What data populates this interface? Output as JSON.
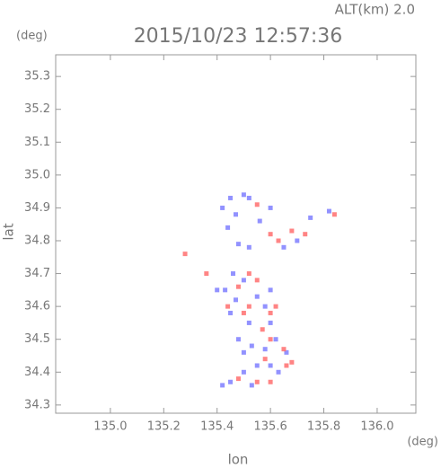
{
  "chart_data": {
    "type": "scatter",
    "title": "2015/10/23 12:57:36",
    "altitude_label": "ALT(km) 2.0",
    "y_unit": "(deg)",
    "x_unit": "(deg)",
    "xlabel": "lon",
    "ylabel": "lat",
    "xlim": [
      134.795,
      136.145
    ],
    "ylim": [
      34.275,
      35.366
    ],
    "xticks": [
      {
        "value": 135.0,
        "label": "135.0"
      },
      135.2,
      135.4,
      135.6,
      135.8,
      {
        "value": 136.0,
        "label": "136.0"
      }
    ],
    "yticks": [
      34.3,
      34.4,
      34.5,
      34.6,
      34.7,
      34.8,
      34.9,
      {
        "value": 35.0,
        "label": "35.0"
      },
      35.1,
      35.2,
      35.3
    ],
    "series": [
      {
        "color": "#7f7fff",
        "x": [
          135.45,
          135.5,
          135.52,
          135.42,
          135.47,
          135.44,
          135.48,
          135.52,
          135.6,
          135.75,
          135.82,
          135.65,
          135.7,
          135.56,
          135.46,
          135.5,
          135.43,
          135.47,
          135.55,
          135.6,
          135.58,
          135.45,
          135.52,
          135.6,
          135.48,
          135.53,
          135.5,
          135.58,
          135.62,
          135.55,
          135.6,
          135.5,
          135.45,
          135.42,
          135.53,
          135.63,
          135.66,
          135.4
        ],
        "values": [
          34.93,
          34.94,
          34.93,
          34.9,
          34.88,
          34.84,
          34.79,
          34.78,
          34.9,
          34.87,
          34.89,
          34.78,
          34.8,
          34.86,
          34.7,
          34.68,
          34.65,
          34.62,
          34.63,
          34.65,
          34.6,
          34.58,
          34.55,
          34.55,
          34.5,
          34.48,
          34.46,
          34.47,
          34.5,
          34.42,
          34.42,
          34.4,
          34.37,
          34.36,
          34.36,
          34.4,
          34.46,
          34.65
        ]
      },
      {
        "color": "#ff6f6f",
        "x": [
          135.55,
          135.6,
          135.63,
          135.68,
          135.73,
          135.84,
          135.28,
          135.52,
          135.55,
          135.48,
          135.52,
          135.6,
          135.62,
          135.57,
          135.6,
          135.65,
          135.68,
          135.66,
          135.58,
          135.6,
          135.55,
          135.48,
          135.36,
          135.44,
          135.5
        ],
        "values": [
          34.91,
          34.82,
          34.8,
          34.83,
          34.82,
          34.88,
          34.76,
          34.7,
          34.68,
          34.66,
          34.6,
          34.58,
          34.6,
          34.53,
          34.5,
          34.47,
          34.43,
          34.42,
          34.44,
          34.37,
          34.37,
          34.38,
          34.7,
          34.6,
          34.58
        ]
      }
    ]
  }
}
